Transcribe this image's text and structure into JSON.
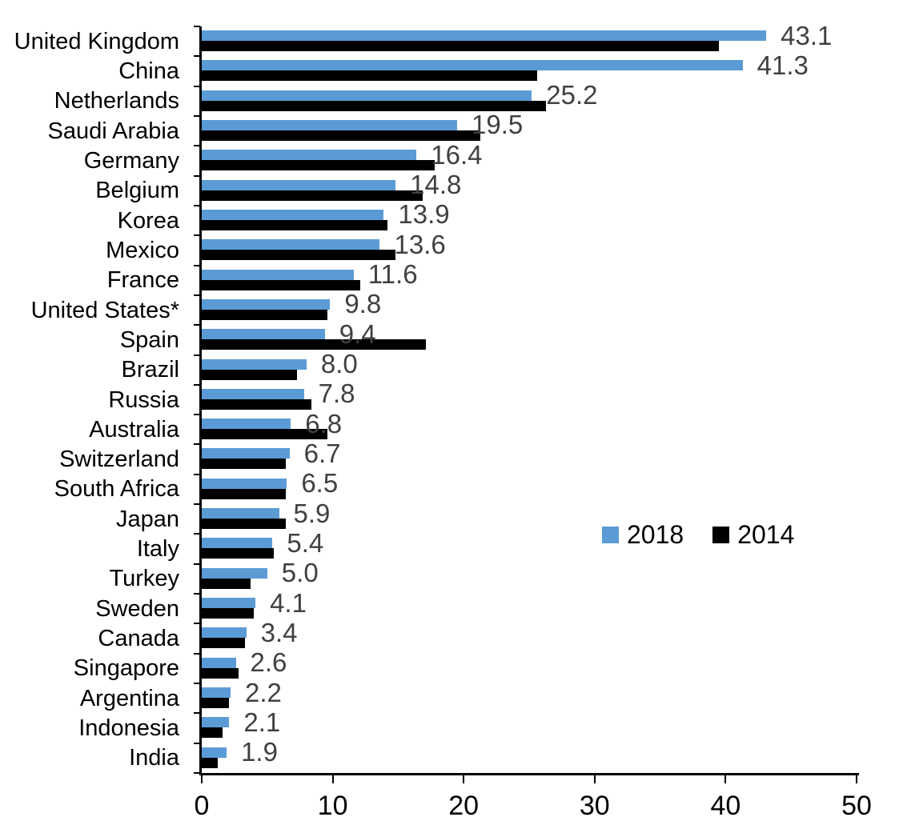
{
  "chart_data": {
    "type": "bar",
    "orientation": "horizontal",
    "title": "",
    "xlabel": "",
    "ylabel": "",
    "xlim": [
      0,
      50
    ],
    "grid": false,
    "legend_position": "middle-right",
    "categories": [
      "United Kingdom",
      "China",
      "Netherlands",
      "Saudi Arabia",
      "Germany",
      "Belgium",
      "Korea",
      "Mexico",
      "France",
      "United States*",
      "Spain",
      "Brazil",
      "Russia",
      "Australia",
      "Switzerland",
      "South Africa",
      "Japan",
      "Italy",
      "Turkey",
      "Sweden",
      "Canada",
      "Singapore",
      "Argentina",
      "Indonesia",
      "India"
    ],
    "series": [
      {
        "name": "2018",
        "color": "#5B9BD5",
        "values": [
          43.1,
          41.3,
          25.2,
          19.5,
          16.4,
          14.8,
          13.9,
          13.6,
          11.6,
          9.8,
          9.4,
          8.0,
          7.8,
          6.8,
          6.7,
          6.5,
          5.9,
          5.4,
          5.0,
          4.1,
          3.4,
          2.6,
          2.2,
          2.1,
          1.9
        ],
        "data_labels": [
          "43.1",
          "41.3",
          "25.2",
          "19.5",
          "16.4",
          "14.8",
          "13.9",
          "13.6",
          "11.6",
          "9.8",
          "9.4",
          "8.0",
          "7.8",
          "6.8",
          "6.7",
          "6.5",
          "5.9",
          "5.4",
          "5.0",
          "4.1",
          "3.4",
          "2.6",
          "2.2",
          "2.1",
          "1.9"
        ]
      },
      {
        "name": "2014",
        "color": "#000000",
        "values": [
          39.5,
          25.6,
          26.3,
          21.3,
          17.8,
          16.9,
          14.2,
          14.8,
          12.1,
          9.6,
          17.1,
          7.3,
          8.4,
          9.6,
          6.4,
          6.4,
          6.4,
          5.5,
          3.7,
          4.0,
          3.3,
          2.8,
          2.1,
          1.6,
          1.2
        ],
        "data_labels": []
      }
    ],
    "xaxis_ticks": [
      "0",
      "10",
      "20",
      "30",
      "40",
      "50"
    ],
    "value_label_color": "#404040",
    "axis_color": "#000000"
  }
}
